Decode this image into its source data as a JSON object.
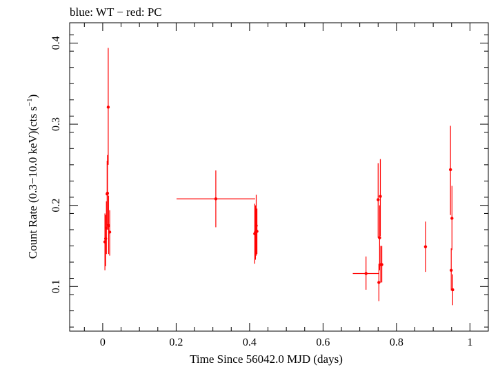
{
  "chart_data": {
    "type": "scatter",
    "title": "blue: WT − red: PC",
    "xlabel": "Time Since 56042.0 MJD (days)",
    "ylabel": "Count Rate (0.3−10.0 keV)(cts s",
    "ylabel_sup": "−1",
    "ylabel_tail": ")",
    "xlim": [
      -0.09,
      1.05
    ],
    "ylim": [
      0.045,
      0.425
    ],
    "x_ticks": [
      0,
      0.2,
      0.4,
      0.6,
      0.8,
      1
    ],
    "x_tick_labels": [
      "0",
      "0.2",
      "0.4",
      "0.6",
      "0.8",
      "1"
    ],
    "y_ticks": [
      0.1,
      0.2,
      0.3,
      0.4
    ],
    "y_tick_labels": [
      "0.1",
      "0.2",
      "0.3",
      "0.4"
    ],
    "grid": false,
    "colors": {
      "PC": "#ff0000",
      "WT": "#0000ff"
    },
    "series": [
      {
        "name": "PC",
        "color": "#ff0000",
        "points": [
          {
            "x": 0.006,
            "y": 0.155,
            "xerr": 0.001,
            "ylo": 0.12,
            "yhi": 0.19
          },
          {
            "x": 0.008,
            "y": 0.159,
            "xerr": 0.001,
            "ylo": 0.125,
            "yhi": 0.188
          },
          {
            "x": 0.01,
            "y": 0.172,
            "xerr": 0.001,
            "ylo": 0.14,
            "yhi": 0.205
          },
          {
            "x": 0.012,
            "y": 0.214,
            "xerr": 0.001,
            "ylo": 0.175,
            "yhi": 0.255
          },
          {
            "x": 0.013,
            "y": 0.215,
            "xerr": 0.001,
            "ylo": 0.17,
            "yhi": 0.262
          },
          {
            "x": 0.015,
            "y": 0.321,
            "xerr": 0.001,
            "ylo": 0.25,
            "yhi": 0.394
          },
          {
            "x": 0.016,
            "y": 0.175,
            "xerr": 0.001,
            "ylo": 0.14,
            "yhi": 0.212
          },
          {
            "x": 0.019,
            "y": 0.167,
            "xerr": 0.001,
            "ylo": 0.138,
            "yhi": 0.194
          },
          {
            "x": 0.308,
            "y": 0.208,
            "xerr": 0.107,
            "ylo": 0.173,
            "yhi": 0.243
          },
          {
            "x": 0.414,
            "y": 0.165,
            "xerr": 0.001,
            "ylo": 0.128,
            "yhi": 0.202
          },
          {
            "x": 0.416,
            "y": 0.167,
            "xerr": 0.001,
            "ylo": 0.133,
            "yhi": 0.2
          },
          {
            "x": 0.418,
            "y": 0.175,
            "xerr": 0.001,
            "ylo": 0.138,
            "yhi": 0.213
          },
          {
            "x": 0.42,
            "y": 0.168,
            "xerr": 0.001,
            "ylo": 0.14,
            "yhi": 0.196
          },
          {
            "x": 0.717,
            "y": 0.116,
            "xerr": 0.036,
            "ylo": 0.096,
            "yhi": 0.137
          },
          {
            "x": 0.75,
            "y": 0.207,
            "xerr": 0.001,
            "ylo": 0.16,
            "yhi": 0.252
          },
          {
            "x": 0.752,
            "y": 0.105,
            "xerr": 0.001,
            "ylo": 0.082,
            "yhi": 0.128
          },
          {
            "x": 0.754,
            "y": 0.16,
            "xerr": 0.001,
            "ylo": 0.12,
            "yhi": 0.2
          },
          {
            "x": 0.756,
            "y": 0.211,
            "xerr": 0.001,
            "ylo": 0.162,
            "yhi": 0.257
          },
          {
            "x": 0.757,
            "y": 0.127,
            "xerr": 0.001,
            "ylo": 0.105,
            "yhi": 0.15
          },
          {
            "x": 0.76,
            "y": 0.127,
            "xerr": 0.001,
            "ylo": 0.105,
            "yhi": 0.15
          },
          {
            "x": 0.879,
            "y": 0.149,
            "xerr": 0.001,
            "ylo": 0.118,
            "yhi": 0.18
          },
          {
            "x": 0.947,
            "y": 0.244,
            "xerr": 0.001,
            "ylo": 0.188,
            "yhi": 0.298
          },
          {
            "x": 0.949,
            "y": 0.12,
            "xerr": 0.001,
            "ylo": 0.095,
            "yhi": 0.147
          },
          {
            "x": 0.951,
            "y": 0.184,
            "xerr": 0.001,
            "ylo": 0.145,
            "yhi": 0.224
          },
          {
            "x": 0.953,
            "y": 0.096,
            "xerr": 0.001,
            "ylo": 0.077,
            "yhi": 0.115
          }
        ]
      }
    ]
  }
}
